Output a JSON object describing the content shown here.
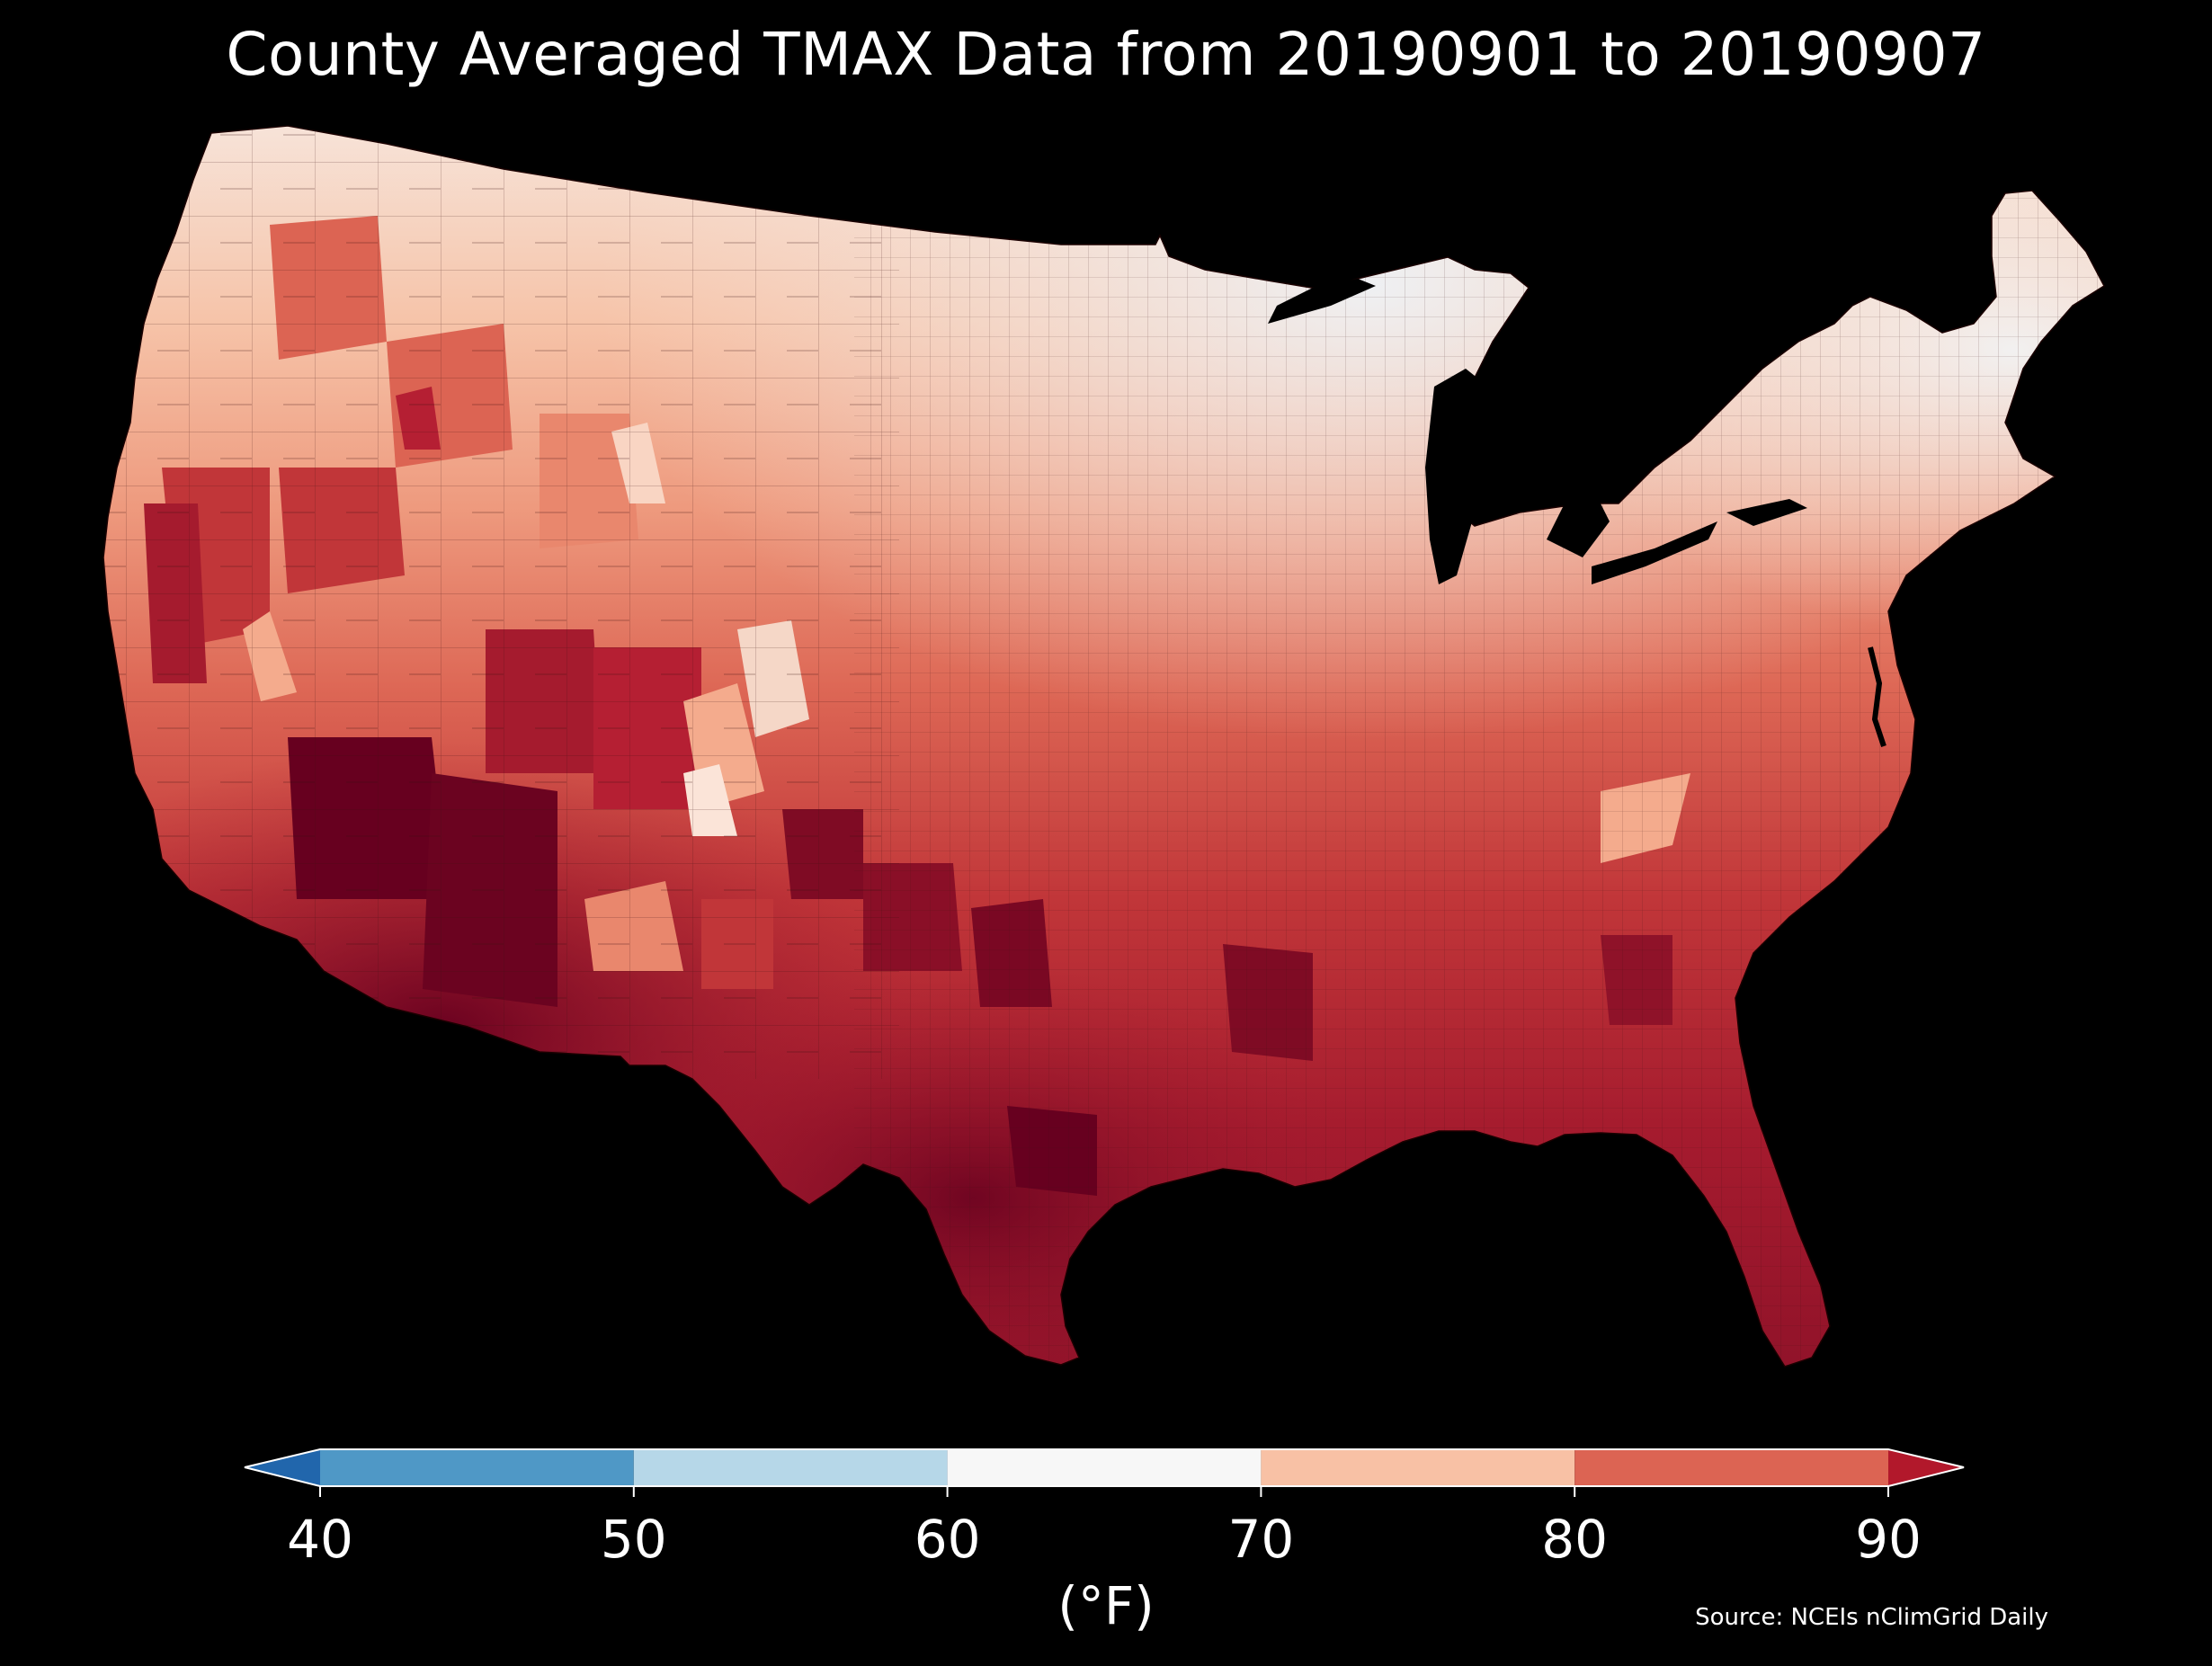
{
  "title": "County Averaged TMAX Data from 20190901 to 20190907",
  "source": "Source: NCEIs nClimGrid Daily",
  "colorbar": {
    "unit_label": "(°F)",
    "ticks": [
      "40",
      "50",
      "60",
      "70",
      "80",
      "90"
    ],
    "bins": [
      {
        "range": [
          40,
          50
        ],
        "color": "#4f98c6"
      },
      {
        "range": [
          50,
          60
        ],
        "color": "#b6d7e8"
      },
      {
        "range": [
          60,
          70
        ],
        "color": "#f7f7f7"
      },
      {
        "range": [
          70,
          80
        ],
        "color": "#f8c1a5"
      },
      {
        "range": [
          80,
          90
        ],
        "color": "#dc6453"
      }
    ],
    "under_color": "#2166ac",
    "over_color": "#b2182b"
  },
  "map": {
    "region": "Contiguous United States",
    "variable": "TMAX",
    "start_date": "20190901",
    "end_date": "20190907",
    "colors": {
      "hottest": "#67001f",
      "very_hot": "#a51b2e",
      "hot": "#c13639",
      "warm": "#dc6453",
      "mild": "#e9876d",
      "cool_warm": "#f4ab8d",
      "light": "#f9d5c3",
      "near_white": "#f5efea",
      "coolest": "#e5eef5",
      "border": "#3a1010"
    }
  }
}
